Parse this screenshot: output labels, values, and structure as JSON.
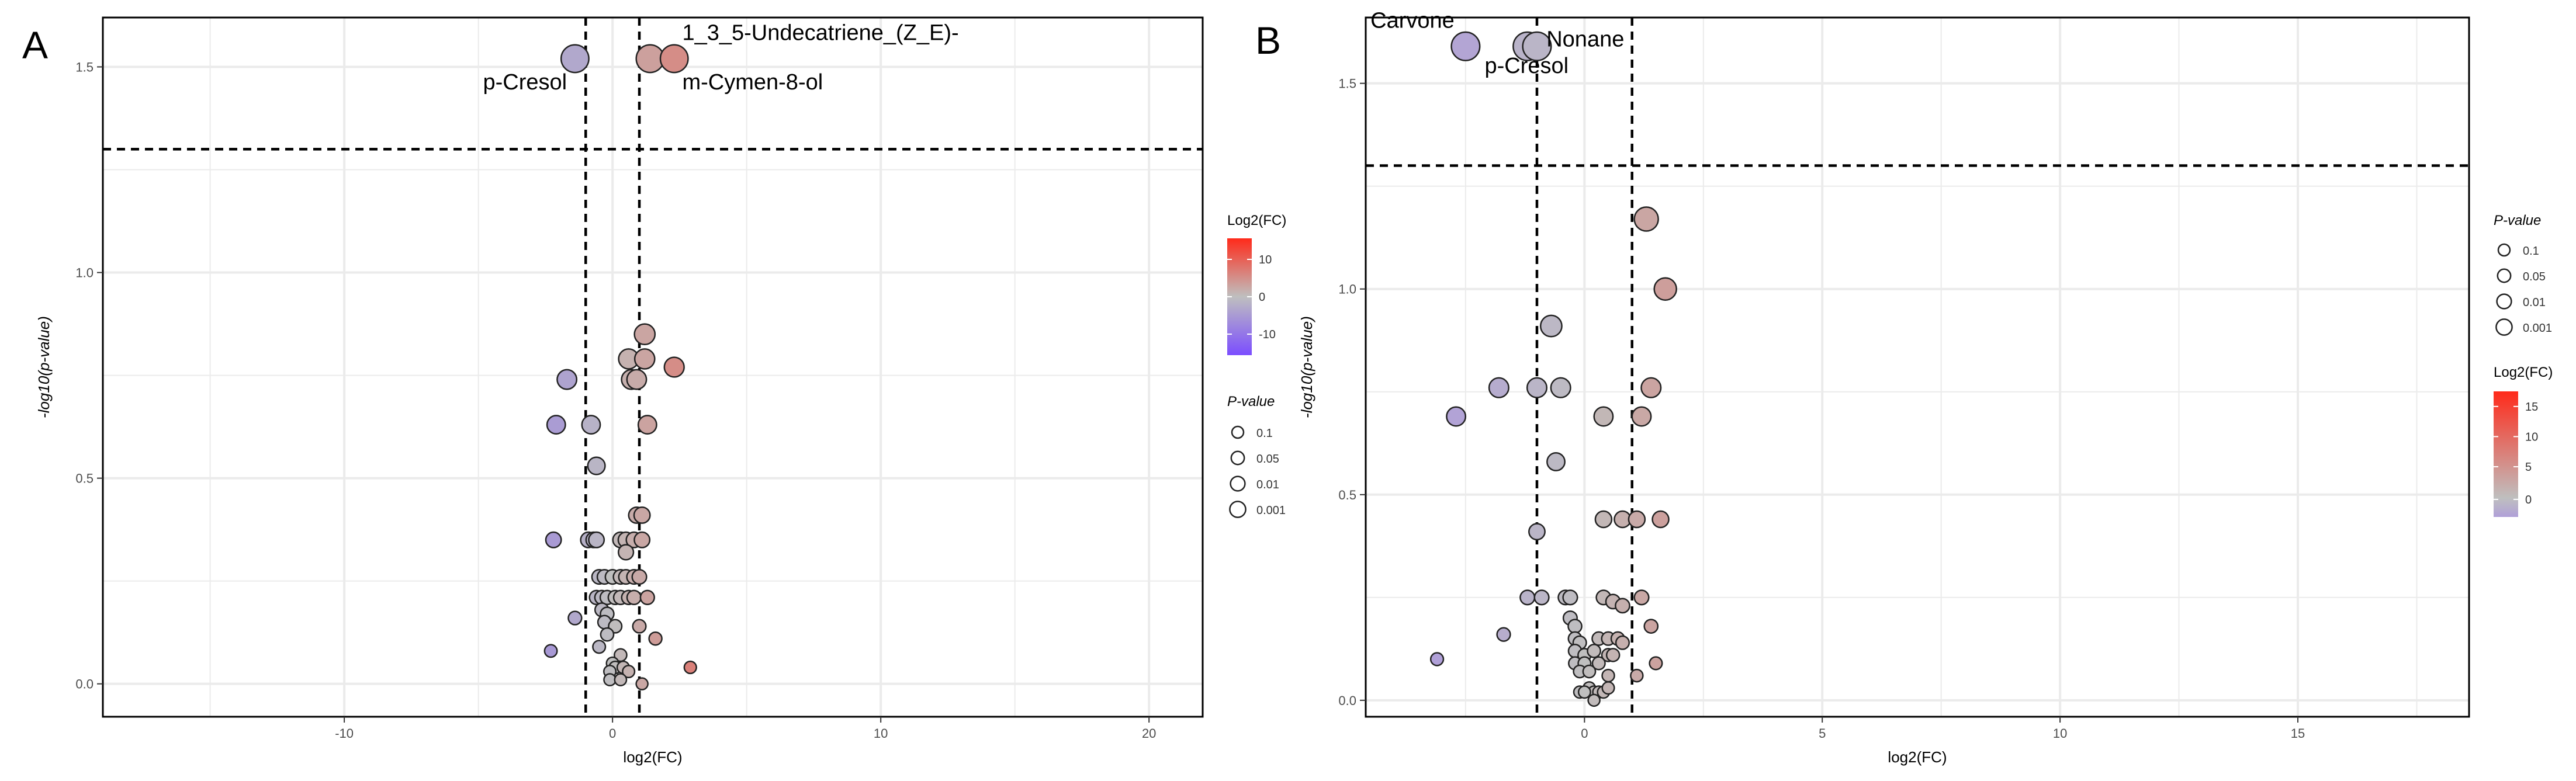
{
  "colors": {
    "grid": "#ebebeb",
    "axis": "#000000",
    "point_stroke": "#222222",
    "neg": "#7b4dff",
    "mid": "#bfbfbf",
    "pos": "#ff2a1a",
    "neg_b": "#b0a0d8"
  },
  "chart_data": [
    {
      "type": "scatter",
      "panel_label": "A",
      "xlabel": "log2(FC)",
      "ylabel": "-log10(p-value)",
      "xlim": [
        -19,
        22
      ],
      "ylim": [
        -0.08,
        1.62
      ],
      "x_ticks": [
        -10,
        0,
        10,
        20
      ],
      "x_tick_labels": [
        "-10",
        "0",
        "10",
        "20"
      ],
      "y_ticks": [
        0.0,
        0.5,
        1.0,
        1.5
      ],
      "y_tick_labels": [
        "0.0",
        "0.5",
        "1.0",
        "1.5"
      ],
      "vlines": [
        -1,
        1
      ],
      "hline": 1.3,
      "color_range": [
        -15,
        15
      ],
      "points": [
        [
          -1.4,
          1.52
        ],
        [
          1.4,
          1.52
        ],
        [
          2.3,
          1.52
        ],
        [
          1.2,
          0.85
        ],
        [
          0.6,
          0.79
        ],
        [
          1.2,
          0.79
        ],
        [
          2.3,
          0.77
        ],
        [
          -1.7,
          0.74
        ],
        [
          0.7,
          0.74
        ],
        [
          0.9,
          0.74
        ],
        [
          -2.1,
          0.63
        ],
        [
          -0.8,
          0.63
        ],
        [
          1.3,
          0.63
        ],
        [
          -0.6,
          0.53
        ],
        [
          0.9,
          0.41
        ],
        [
          1.1,
          0.41
        ],
        [
          -2.2,
          0.35
        ],
        [
          -0.9,
          0.35
        ],
        [
          -0.7,
          0.35
        ],
        [
          -0.6,
          0.35
        ],
        [
          0.3,
          0.35
        ],
        [
          0.5,
          0.35
        ],
        [
          0.8,
          0.35
        ],
        [
          1.1,
          0.35
        ],
        [
          0.5,
          0.32
        ],
        [
          -0.5,
          0.26
        ],
        [
          -0.3,
          0.26
        ],
        [
          0.0,
          0.26
        ],
        [
          0.3,
          0.26
        ],
        [
          0.5,
          0.26
        ],
        [
          0.8,
          0.26
        ],
        [
          1.0,
          0.26
        ],
        [
          -0.6,
          0.21
        ],
        [
          -0.4,
          0.21
        ],
        [
          -0.2,
          0.21
        ],
        [
          0.1,
          0.21
        ],
        [
          0.3,
          0.21
        ],
        [
          0.6,
          0.21
        ],
        [
          0.8,
          0.21
        ],
        [
          1.3,
          0.21
        ],
        [
          -0.4,
          0.18
        ],
        [
          -0.2,
          0.17
        ],
        [
          -1.4,
          0.16
        ],
        [
          -0.3,
          0.15
        ],
        [
          0.1,
          0.14
        ],
        [
          1.0,
          0.14
        ],
        [
          -0.2,
          0.12
        ],
        [
          1.6,
          0.11
        ],
        [
          -0.5,
          0.09
        ],
        [
          -2.3,
          0.08
        ],
        [
          0.3,
          0.07
        ],
        [
          0.0,
          0.05
        ],
        [
          0.1,
          0.04
        ],
        [
          0.4,
          0.04
        ],
        [
          -0.1,
          0.03
        ],
        [
          0.6,
          0.03
        ],
        [
          2.9,
          0.04
        ],
        [
          -0.1,
          0.01
        ],
        [
          0.3,
          0.01
        ],
        [
          1.1,
          0.0
        ]
      ],
      "labels": [
        {
          "text": "1_3_5-Undecatriene_(Z_E)-",
          "x": 2.6,
          "y": 1.565
        },
        {
          "text": "m-Cymen-8-ol",
          "x": 2.6,
          "y": 1.445
        },
        {
          "text": "p-Cresol",
          "x": -1.7,
          "y": 1.445
        }
      ],
      "legend": {
        "color_title": "Log2(FC)",
        "color_ticks": [
          "10",
          "0",
          "-10"
        ],
        "size_title": "P-value",
        "size_entries": [
          "0.1",
          "0.05",
          "0.01",
          "0.001"
        ],
        "order": "color-first"
      }
    },
    {
      "type": "scatter",
      "panel_label": "B",
      "xlabel": "log2(FC)",
      "ylabel": "-log10(p-value)",
      "xlim": [
        -4.6,
        18.6
      ],
      "ylim": [
        -0.04,
        1.66
      ],
      "x_ticks": [
        0,
        5,
        10,
        15
      ],
      "x_tick_labels": [
        "0",
        "5",
        "10",
        "15"
      ],
      "y_ticks": [
        0.0,
        0.5,
        1.0,
        1.5
      ],
      "y_tick_labels": [
        "0.0",
        "0.5",
        "1.0",
        "1.5"
      ],
      "vlines": [
        -1,
        1
      ],
      "hline": 1.3,
      "color_range": [
        -3,
        17
      ],
      "points": [
        [
          -2.5,
          1.59
        ],
        [
          -1.2,
          1.59
        ],
        [
          -1.0,
          1.59
        ],
        [
          1.3,
          1.17
        ],
        [
          1.7,
          1.0
        ],
        [
          -0.7,
          0.91
        ],
        [
          -1.8,
          0.76
        ],
        [
          -1.0,
          0.76
        ],
        [
          -0.5,
          0.76
        ],
        [
          1.4,
          0.76
        ],
        [
          -2.7,
          0.69
        ],
        [
          0.4,
          0.69
        ],
        [
          1.2,
          0.69
        ],
        [
          -0.6,
          0.58
        ],
        [
          0.4,
          0.44
        ],
        [
          0.8,
          0.44
        ],
        [
          1.1,
          0.44
        ],
        [
          1.6,
          0.44
        ],
        [
          -1.0,
          0.41
        ],
        [
          -1.2,
          0.25
        ],
        [
          -0.9,
          0.25
        ],
        [
          -0.4,
          0.25
        ],
        [
          -0.3,
          0.25
        ],
        [
          0.4,
          0.25
        ],
        [
          0.6,
          0.24
        ],
        [
          0.8,
          0.23
        ],
        [
          1.2,
          0.25
        ],
        [
          -0.3,
          0.2
        ],
        [
          -0.2,
          0.18
        ],
        [
          1.4,
          0.18
        ],
        [
          -1.7,
          0.16
        ],
        [
          -0.2,
          0.15
        ],
        [
          -0.1,
          0.14
        ],
        [
          0.3,
          0.15
        ],
        [
          0.5,
          0.15
        ],
        [
          0.7,
          0.15
        ],
        [
          0.8,
          0.14
        ],
        [
          -0.2,
          0.12
        ],
        [
          0.0,
          0.11
        ],
        [
          0.2,
          0.12
        ],
        [
          0.5,
          0.11
        ],
        [
          0.6,
          0.11
        ],
        [
          -3.1,
          0.1
        ],
        [
          -0.2,
          0.09
        ],
        [
          0.0,
          0.09
        ],
        [
          0.3,
          0.09
        ],
        [
          1.5,
          0.09
        ],
        [
          -0.1,
          0.07
        ],
        [
          0.1,
          0.07
        ],
        [
          0.5,
          0.06
        ],
        [
          1.1,
          0.06
        ],
        [
          0.1,
          0.03
        ],
        [
          0.2,
          0.02
        ],
        [
          0.3,
          0.02
        ],
        [
          -0.1,
          0.02
        ],
        [
          0.0,
          0.02
        ],
        [
          0.4,
          0.02
        ],
        [
          0.5,
          0.03
        ],
        [
          0.2,
          0.0
        ]
      ],
      "labels": [
        {
          "text": "Carvone",
          "x": -4.5,
          "y": 1.635
        },
        {
          "text": "p-Cresol",
          "x": -2.1,
          "y": 1.525
        },
        {
          "text": "Nonane",
          "x": -0.8,
          "y": 1.59
        }
      ],
      "legend": {
        "color_title": "Log2(FC)",
        "color_ticks": [
          "15",
          "10",
          "5",
          "0"
        ],
        "size_title": "P-value",
        "size_entries": [
          "0.1",
          "0.05",
          "0.01",
          "0.001"
        ],
        "order": "size-first"
      }
    }
  ]
}
